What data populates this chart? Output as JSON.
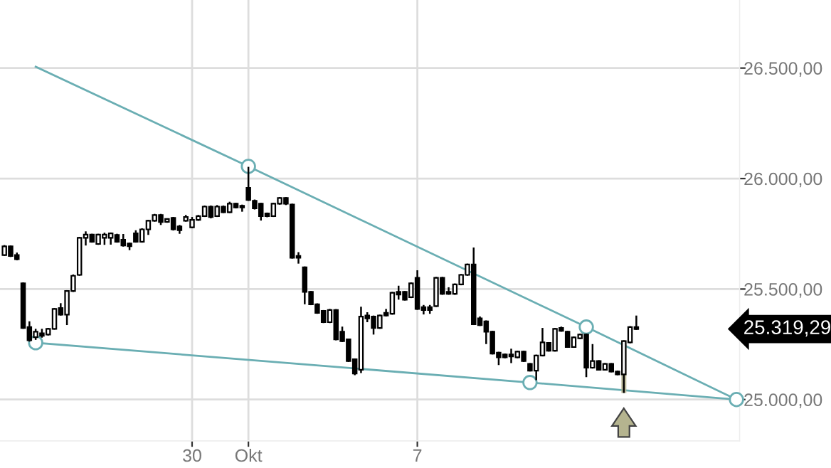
{
  "chart_data": {
    "type": "candlestick",
    "categories": [
      null,
      null,
      null,
      null,
      null,
      null,
      null,
      null,
      null,
      null,
      null,
      null,
      null,
      null,
      null,
      null,
      null,
      null,
      null,
      null,
      null,
      null,
      null,
      null,
      null,
      null,
      null,
      null,
      null,
      null,
      "30",
      null,
      null,
      null,
      null,
      null,
      null,
      null,
      null,
      "Okt",
      null,
      null,
      null,
      null,
      null,
      null,
      null,
      null,
      null,
      null,
      null,
      null,
      null,
      null,
      null,
      null,
      null,
      null,
      null,
      null,
      null,
      null,
      null,
      null,
      null,
      null,
      "7",
      null,
      null,
      null,
      null,
      null,
      null,
      null,
      null,
      null,
      null,
      null,
      null,
      null,
      null,
      null,
      null,
      null,
      null,
      null,
      null,
      null,
      null,
      null,
      null,
      null,
      null,
      null,
      null,
      null,
      null,
      null,
      null,
      null,
      null,
      null,
      null,
      null,
      null,
      null,
      null,
      null,
      null,
      null,
      null,
      null,
      null,
      null,
      null,
      null,
      null,
      null
    ],
    "ohlc": [
      [
        25654,
        25699,
        25650,
        25693
      ],
      [
        25693,
        25697,
        25645,
        25650
      ],
      [
        25654,
        25665,
        25630,
        25635
      ],
      [
        25526,
        25530,
        25320,
        25324
      ],
      [
        25328,
        25354,
        25262,
        25268
      ],
      [
        25282,
        25320,
        25270,
        25307
      ],
      [
        25300,
        25320,
        25280,
        25288
      ],
      [
        25294,
        25324,
        25290,
        25320
      ],
      [
        25320,
        25414,
        25316,
        25410
      ],
      [
        25414,
        25436,
        25380,
        25384
      ],
      [
        25384,
        25495,
        25337,
        25491
      ],
      [
        25491,
        25566,
        25487,
        25560
      ],
      [
        25564,
        25736,
        25560,
        25732
      ],
      [
        25732,
        25761,
        25697,
        25746
      ],
      [
        25746,
        25750,
        25710,
        25714
      ],
      [
        25704,
        25750,
        25700,
        25746
      ],
      [
        25732,
        25755,
        25700,
        25746
      ],
      [
        25732,
        25756,
        25701,
        25752
      ],
      [
        25745,
        25750,
        25710,
        25714
      ],
      [
        25723,
        25749,
        25692,
        25697
      ],
      [
        25706,
        25710,
        25676,
        25694
      ],
      [
        25752,
        25766,
        25710,
        25714
      ],
      [
        25714,
        25775,
        25710,
        25770
      ],
      [
        25770,
        25813,
        25745,
        25809
      ],
      [
        25809,
        25840,
        25805,
        25835
      ],
      [
        25835,
        25840,
        25790,
        25803
      ],
      [
        25804,
        25820,
        25800,
        25817
      ],
      [
        25822,
        25826,
        25765,
        25770
      ],
      [
        25783,
        25790,
        25750,
        25766
      ],
      [
        25809,
        25835,
        25805,
        25826
      ],
      [
        25779,
        25826,
        25775,
        25813
      ],
      [
        25813,
        25835,
        25809,
        25830
      ],
      [
        25830,
        25878,
        25826,
        25873
      ],
      [
        25873,
        25878,
        25820,
        25826
      ],
      [
        25830,
        25880,
        25826,
        25873
      ],
      [
        25873,
        25878,
        25844,
        25848
      ],
      [
        25848,
        25895,
        25844,
        25886
      ],
      [
        25886,
        25890,
        25865,
        25869
      ],
      [
        25877,
        25882,
        25850,
        25869
      ],
      [
        25958,
        26053,
        25899,
        25903
      ],
      [
        25899,
        25905,
        25860,
        25865
      ],
      [
        25886,
        25890,
        25810,
        25830
      ],
      [
        25842,
        25846,
        25825,
        25830
      ],
      [
        25830,
        25890,
        25826,
        25886
      ],
      [
        25886,
        25916,
        25882,
        25912
      ],
      [
        25912,
        25916,
        25880,
        25886
      ],
      [
        25882,
        25886,
        25638,
        25642
      ],
      [
        25650,
        25667,
        25615,
        25642
      ],
      [
        25598,
        25602,
        25431,
        25487
      ],
      [
        25487,
        25491,
        25427,
        25431
      ],
      [
        25431,
        25435,
        25388,
        25392
      ],
      [
        25401,
        25405,
        25346,
        25350
      ],
      [
        25350,
        25410,
        25346,
        25405
      ],
      [
        25405,
        25409,
        25268,
        25272
      ],
      [
        25307,
        25330,
        25260,
        25264
      ],
      [
        25272,
        25276,
        25170,
        25174
      ],
      [
        25182,
        25186,
        25110,
        25118
      ],
      [
        25135,
        25420,
        25120,
        25375
      ],
      [
        25380,
        25395,
        25350,
        25367
      ],
      [
        25375,
        25380,
        25294,
        25324
      ],
      [
        25324,
        25384,
        25320,
        25380
      ],
      [
        25392,
        25410,
        25376,
        25380
      ],
      [
        25388,
        25487,
        25384,
        25483
      ],
      [
        25487,
        25515,
        25452,
        25475
      ],
      [
        25487,
        25491,
        25448,
        25452
      ],
      [
        25463,
        25530,
        25459,
        25526
      ],
      [
        25551,
        25585,
        25406,
        25410
      ],
      [
        25418,
        25428,
        25385,
        25405
      ],
      [
        25418,
        25428,
        25388,
        25405
      ],
      [
        25423,
        25555,
        25419,
        25551
      ],
      [
        25551,
        25555,
        25474,
        25478
      ],
      [
        25487,
        25508,
        25474,
        25478
      ],
      [
        25478,
        25525,
        25474,
        25521
      ],
      [
        25521,
        25568,
        25517,
        25564
      ],
      [
        25564,
        25615,
        25560,
        25611
      ],
      [
        25611,
        25688,
        25337,
        25341
      ],
      [
        25367,
        25376,
        25333,
        25337
      ],
      [
        25354,
        25358,
        25251,
        25307
      ],
      [
        25307,
        25311,
        25204,
        25208
      ],
      [
        25212,
        25216,
        25156,
        25191
      ],
      [
        25204,
        25208,
        25187,
        25191
      ],
      [
        25204,
        25230,
        25165,
        25195
      ],
      [
        25191,
        25221,
        25187,
        25217
      ],
      [
        25217,
        25221,
        25170,
        25174
      ],
      [
        25161,
        25165,
        25127,
        25131
      ],
      [
        25131,
        25203,
        25088,
        25199
      ],
      [
        25199,
        25324,
        25195,
        25259
      ],
      [
        25256,
        25260,
        25217,
        25221
      ],
      [
        25221,
        25324,
        25217,
        25320
      ],
      [
        25324,
        25330,
        25307,
        25311
      ],
      [
        25307,
        25311,
        25234,
        25238
      ],
      [
        25238,
        25285,
        25234,
        25281
      ],
      [
        25277,
        25298,
        25273,
        25294
      ],
      [
        25294,
        25298,
        25101,
        25144
      ],
      [
        25144,
        25251,
        25140,
        25174
      ],
      [
        25174,
        25178,
        25131,
        25135
      ],
      [
        25135,
        25165,
        25131,
        25161
      ],
      [
        25161,
        25165,
        25123,
        25127
      ],
      [
        25127,
        25131,
        25110,
        25114
      ],
      [
        25114,
        25268,
        25030,
        25264
      ],
      [
        25259,
        25332,
        25255,
        25328
      ],
      [
        25328,
        25380,
        25315,
        25319.29
      ],
      null,
      null,
      null,
      null,
      null,
      null,
      null,
      null,
      null,
      null,
      null,
      null,
      null,
      null,
      null,
      null
    ],
    "series": [
      {
        "type": "line",
        "color": "#6aaeb3",
        "values": [
          null,
          null,
          null,
          null,
          null,
          26506,
          null,
          null,
          null,
          null,
          null,
          null,
          null,
          null,
          null,
          null,
          null,
          null,
          null,
          null,
          null,
          null,
          null,
          null,
          null,
          null,
          null,
          null,
          null,
          null,
          null,
          null,
          null,
          null,
          null,
          null,
          null,
          null,
          null,
          26055,
          null,
          null,
          null,
          null,
          null,
          null,
          null,
          null,
          null,
          null,
          null,
          null,
          null,
          null,
          null,
          null,
          null,
          null,
          null,
          null,
          null,
          null,
          null,
          null,
          null,
          null,
          null,
          null,
          null,
          null,
          null,
          null,
          null,
          null,
          null,
          null,
          null,
          null,
          null,
          null,
          null,
          null,
          null,
          null,
          null,
          null,
          null,
          null,
          null,
          null,
          null,
          null,
          null,
          25328,
          null,
          null,
          null,
          null,
          null,
          null,
          null,
          null,
          null,
          null,
          null,
          null,
          null,
          null,
          null,
          null,
          null,
          null,
          null,
          null,
          null,
          null,
          null,
          25000
        ]
      },
      {
        "type": "line",
        "color": "#6aaeb3",
        "values": [
          null,
          null,
          null,
          null,
          null,
          25257,
          null,
          null,
          null,
          null,
          null,
          null,
          null,
          null,
          null,
          null,
          null,
          null,
          null,
          null,
          null,
          null,
          null,
          null,
          null,
          null,
          null,
          null,
          null,
          null,
          null,
          null,
          null,
          null,
          null,
          null,
          null,
          null,
          null,
          null,
          null,
          null,
          null,
          null,
          null,
          null,
          null,
          null,
          null,
          null,
          null,
          null,
          null,
          null,
          null,
          null,
          null,
          null,
          null,
          null,
          null,
          null,
          null,
          null,
          null,
          null,
          null,
          null,
          null,
          null,
          null,
          null,
          null,
          null,
          null,
          null,
          null,
          null,
          null,
          null,
          null,
          null,
          null,
          null,
          25077,
          null,
          null,
          null,
          null,
          null,
          null,
          null,
          null,
          null,
          null,
          null,
          null,
          null,
          null,
          null,
          null,
          null,
          null,
          null,
          null,
          null,
          null,
          null,
          null,
          null,
          null,
          null,
          null,
          null,
          null,
          null,
          null,
          25000
        ]
      },
      {
        "type": "scatter",
        "color": "#6aaeb3",
        "marker": "circle",
        "values": [
          null,
          null,
          null,
          null,
          null,
          25257,
          null,
          null,
          null,
          null,
          null,
          null,
          null,
          null,
          null,
          null,
          null,
          null,
          null,
          null,
          null,
          null,
          null,
          null,
          null,
          null,
          null,
          null,
          null,
          null,
          null,
          null,
          null,
          null,
          null,
          null,
          null,
          null,
          null,
          26055,
          null,
          null,
          null,
          null,
          null,
          null,
          null,
          null,
          null,
          null,
          null,
          null,
          null,
          null,
          null,
          null,
          null,
          null,
          null,
          null,
          null,
          null,
          null,
          null,
          null,
          null,
          null,
          null,
          null,
          null,
          null,
          null,
          null,
          null,
          null,
          null,
          null,
          null,
          null,
          null,
          null,
          null,
          null,
          null,
          25077,
          null,
          null,
          null,
          null,
          null,
          null,
          null,
          null,
          25328,
          null,
          null,
          null,
          null,
          null,
          null,
          null,
          null,
          null,
          null,
          null,
          null,
          null,
          null,
          null,
          null,
          null,
          null,
          null,
          null,
          null,
          null,
          null,
          25000
        ]
      }
    ],
    "annotations": [
      "25.319,29"
    ],
    "ylim": [
      24813,
      26808
    ],
    "yticks": [
      {
        "value": 25000,
        "label": "25.000,00"
      },
      {
        "value": 25500,
        "label": "25.500,00"
      },
      {
        "value": 26000,
        "label": "26.000,00"
      },
      {
        "value": 26500,
        "label": "26.500,00"
      }
    ],
    "grid": true
  }
}
